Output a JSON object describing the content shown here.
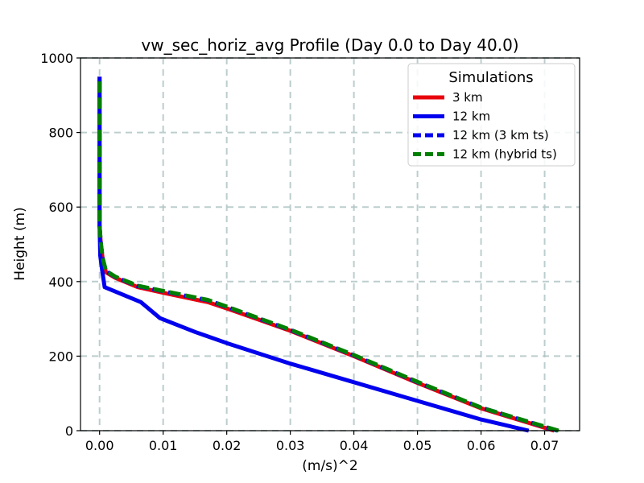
{
  "chart_data": {
    "type": "line",
    "title": "vw_sec_horiz_avg Profile (Day 0.0 to Day 40.0)",
    "xlabel": "(m/s)^2",
    "ylabel": "Height (m)",
    "xlim": [
      -0.003,
      0.0755
    ],
    "ylim": [
      0,
      1000
    ],
    "x_ticks": [
      0.0,
      0.01,
      0.02,
      0.03,
      0.04,
      0.05,
      0.06,
      0.07
    ],
    "x_tick_labels": [
      "0.00",
      "0.01",
      "0.02",
      "0.03",
      "0.04",
      "0.05",
      "0.06",
      "0.07"
    ],
    "y_ticks": [
      0,
      200,
      400,
      600,
      800,
      1000
    ],
    "y_tick_labels": [
      "0",
      "200",
      "400",
      "600",
      "800",
      "1000"
    ],
    "grid": true,
    "legend": {
      "title": "Simulations",
      "position": "top-right"
    },
    "series": [
      {
        "name": "3 km",
        "color": "#e8000b",
        "style": "solid",
        "points": [
          [
            0.0715,
            0
          ],
          [
            0.06,
            60
          ],
          [
            0.05,
            128
          ],
          [
            0.04,
            200
          ],
          [
            0.03,
            268
          ],
          [
            0.02,
            328
          ],
          [
            0.017,
            345
          ],
          [
            0.01,
            370
          ],
          [
            0.006,
            385
          ],
          [
            0.0025,
            410
          ],
          [
            0.001,
            425
          ],
          [
            0.0005,
            460
          ],
          [
            0.0002,
            500
          ],
          [
            0.0,
            550
          ],
          [
            0.0,
            700
          ],
          [
            0.0,
            950
          ]
        ]
      },
      {
        "name": "12 km",
        "color": "#0000ee",
        "style": "solid",
        "points": [
          [
            0.0675,
            0
          ],
          [
            0.06,
            30
          ],
          [
            0.05,
            80
          ],
          [
            0.04,
            130
          ],
          [
            0.03,
            180
          ],
          [
            0.02,
            235
          ],
          [
            0.015,
            265
          ],
          [
            0.0095,
            302
          ],
          [
            0.0065,
            345
          ],
          [
            0.0008,
            385
          ],
          [
            0.0004,
            430
          ],
          [
            0.0001,
            470
          ],
          [
            0.0,
            550
          ],
          [
            0.0,
            700
          ],
          [
            0.0,
            950
          ]
        ]
      },
      {
        "name": "12 km (3 km ts)",
        "color": "#0000ee",
        "style": "dashed",
        "points": [
          [
            0.072,
            0
          ],
          [
            0.06,
            62
          ],
          [
            0.05,
            130
          ],
          [
            0.04,
            202
          ],
          [
            0.03,
            270
          ],
          [
            0.02,
            332
          ],
          [
            0.017,
            350
          ],
          [
            0.01,
            374
          ],
          [
            0.006,
            388
          ],
          [
            0.0025,
            412
          ],
          [
            0.001,
            428
          ],
          [
            0.0005,
            462
          ],
          [
            0.0002,
            502
          ],
          [
            0.0,
            550
          ],
          [
            0.0,
            700
          ],
          [
            0.0,
            950
          ]
        ]
      },
      {
        "name": "12 km (hybrid ts)",
        "color": "#008000",
        "style": "dashed",
        "points": [
          [
            0.0722,
            0
          ],
          [
            0.06,
            62
          ],
          [
            0.05,
            131
          ],
          [
            0.04,
            203
          ],
          [
            0.03,
            271
          ],
          [
            0.02,
            333
          ],
          [
            0.017,
            351
          ],
          [
            0.01,
            375
          ],
          [
            0.006,
            389
          ],
          [
            0.0025,
            413
          ],
          [
            0.001,
            429
          ],
          [
            0.0005,
            463
          ],
          [
            0.0002,
            503
          ],
          [
            0.0,
            550
          ],
          [
            0.0,
            700
          ],
          [
            0.0,
            950
          ]
        ]
      }
    ]
  }
}
